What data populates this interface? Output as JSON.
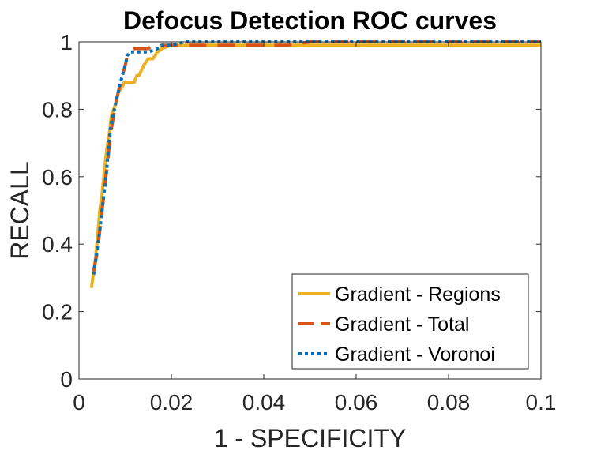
{
  "chart_data": {
    "type": "line",
    "title": "Defocus Detection ROC curves",
    "xlabel": "1 - SPECIFICITY",
    "ylabel": "RECALL",
    "xlim": [
      0,
      0.1
    ],
    "ylim": [
      0,
      1
    ],
    "xticks": [
      0,
      0.02,
      0.04,
      0.06,
      0.08,
      0.1
    ],
    "xtick_labels": [
      "0",
      "0.02",
      "0.04",
      "0.06",
      "0.08",
      "0.1"
    ],
    "yticks": [
      0,
      0.2,
      0.4,
      0.6,
      0.8,
      1
    ],
    "ytick_labels": [
      "0",
      "0.2",
      "0.4",
      "0.6",
      "0.8",
      "1"
    ],
    "grid": false,
    "legend_position": "bottom-right",
    "series": [
      {
        "name": "Gradient - Regions",
        "color": "#EDB120",
        "style": "solid",
        "x": [
          0.0027,
          0.003,
          0.0035,
          0.004,
          0.0045,
          0.005,
          0.0055,
          0.006,
          0.0065,
          0.007,
          0.0075,
          0.008,
          0.0085,
          0.009,
          0.0095,
          0.0098,
          0.0103,
          0.011,
          0.012,
          0.0125,
          0.013,
          0.014,
          0.015,
          0.016,
          0.0165,
          0.017,
          0.018,
          0.02,
          0.03,
          0.05,
          0.07,
          0.1
        ],
        "y": [
          0.27,
          0.3,
          0.35,
          0.42,
          0.5,
          0.55,
          0.62,
          0.68,
          0.72,
          0.78,
          0.8,
          0.82,
          0.85,
          0.86,
          0.87,
          0.88,
          0.88,
          0.88,
          0.88,
          0.9,
          0.9,
          0.93,
          0.95,
          0.95,
          0.96,
          0.97,
          0.98,
          0.99,
          0.99,
          0.99,
          0.99,
          0.99
        ]
      },
      {
        "name": "Gradient - Total",
        "color": "#D95319",
        "style": "dashed",
        "x": [
          0.0032,
          0.004,
          0.005,
          0.006,
          0.007,
          0.008,
          0.009,
          0.01,
          0.0105,
          0.011,
          0.012,
          0.014,
          0.015,
          0.016,
          0.02,
          0.03,
          0.045,
          0.05,
          0.07,
          0.1
        ],
        "y": [
          0.32,
          0.38,
          0.5,
          0.62,
          0.74,
          0.82,
          0.88,
          0.93,
          0.96,
          0.97,
          0.98,
          0.98,
          0.98,
          0.99,
          0.99,
          0.99,
          0.99,
          1.0,
          1.0,
          1.0
        ]
      },
      {
        "name": "Gradient - Voronoi",
        "color": "#0072BD",
        "style": "dotted",
        "x": [
          0.0032,
          0.0038,
          0.0045,
          0.005,
          0.006,
          0.0065,
          0.007,
          0.008,
          0.009,
          0.01,
          0.0105,
          0.011,
          0.012,
          0.015,
          0.017,
          0.018,
          0.02,
          0.023,
          0.03,
          0.05,
          0.07,
          0.1
        ],
        "y": [
          0.31,
          0.37,
          0.44,
          0.5,
          0.62,
          0.7,
          0.76,
          0.82,
          0.88,
          0.93,
          0.96,
          0.97,
          0.97,
          0.97,
          0.98,
          0.99,
          0.99,
          1.0,
          1.0,
          1.0,
          1.0,
          1.0
        ]
      }
    ]
  }
}
